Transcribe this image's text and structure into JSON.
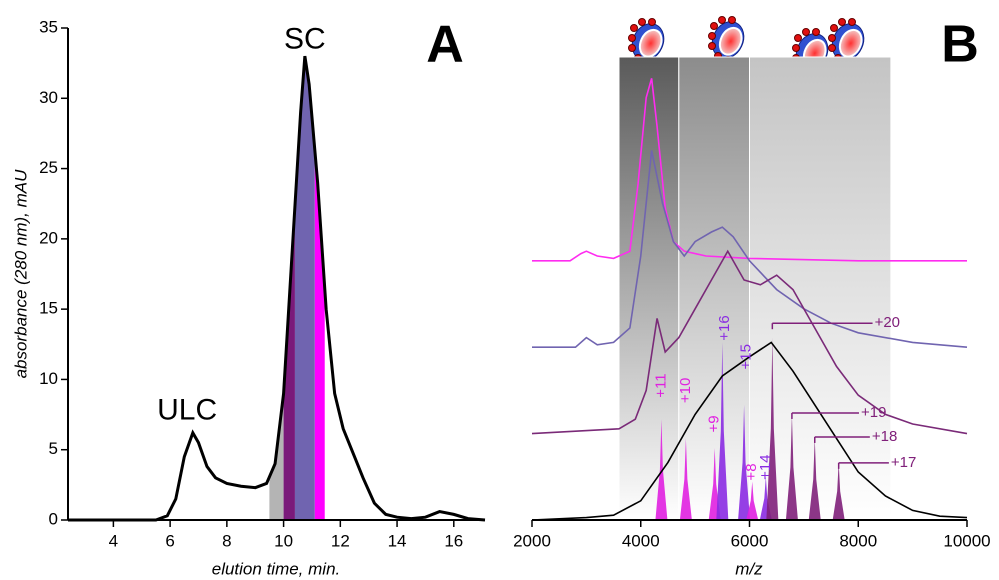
{
  "chart_data": [
    {
      "type": "line",
      "label": "A",
      "xlabel": "elution time, min.",
      "ylabel": "absorbance (280 nm), mAU",
      "xlim": [
        2.4,
        17.1
      ],
      "ylim": [
        0,
        35
      ],
      "xticks": [
        4,
        6,
        8,
        10,
        12,
        14,
        16
      ],
      "yticks": [
        0,
        5,
        10,
        15,
        20,
        25,
        30,
        35
      ],
      "annotations": [
        {
          "text": "SC",
          "x": 10.75,
          "y": 34.1
        },
        {
          "text": "ULC",
          "x": 6.6,
          "y": 7.7
        }
      ],
      "bands": [
        {
          "x": [
            9.5,
            10.0
          ],
          "color": "#b4b4b4"
        },
        {
          "x": [
            10.0,
            10.4
          ],
          "color": "#7a1a7a"
        },
        {
          "x": [
            10.4,
            11.1
          ],
          "color": "#7064b0"
        },
        {
          "x": [
            11.1,
            11.45
          ],
          "color": "#ff00ff"
        }
      ],
      "series": [
        {
          "color": "#000000",
          "x": [
            2.4,
            5.5,
            5.9,
            6.2,
            6.5,
            6.8,
            7.0,
            7.3,
            7.6,
            8.0,
            8.5,
            9.0,
            9.4,
            9.7,
            10.0,
            10.3,
            10.6,
            10.75,
            10.9,
            11.2,
            11.5,
            11.8,
            12.1,
            12.5,
            12.8,
            13.2,
            13.6,
            14.0,
            14.5,
            15.0,
            15.5,
            16.0,
            16.5,
            17.1
          ],
          "values": [
            0,
            0,
            0.3,
            1.5,
            4.5,
            6.2,
            5.5,
            3.8,
            3.0,
            2.6,
            2.4,
            2.3,
            2.6,
            4,
            9,
            19,
            29,
            33,
            31,
            24,
            15,
            9,
            6.5,
            4.5,
            3.0,
            1.2,
            0.4,
            0.2,
            0.1,
            0.2,
            0.6,
            0.4,
            0.1,
            0
          ]
        }
      ]
    },
    {
      "type": "line",
      "label": "B",
      "xlabel": "m/z",
      "xlim": [
        2000,
        10000
      ],
      "ylim": [
        0,
        100
      ],
      "xticks": [
        2000,
        4000,
        6000,
        8000,
        10000
      ],
      "bands": [
        {
          "x": [
            3600,
            4700
          ],
          "color": "#5a5a5a"
        },
        {
          "x": [
            4700,
            6000
          ],
          "color": "#8c8c8c"
        },
        {
          "x": [
            6000,
            8600
          ],
          "color": "#c4c4c4"
        }
      ],
      "series": [
        {
          "color": "#ff2cf0",
          "x": [
            2000,
            2700,
            2900,
            3000,
            3200,
            3500,
            3800,
            3950,
            4100,
            4200,
            4300,
            4450,
            4600,
            4800,
            5200,
            6000,
            8000,
            10000
          ],
          "values": [
            54,
            54,
            55.5,
            56,
            55,
            54.5,
            56,
            70,
            88,
            92,
            82,
            65,
            58,
            56,
            55,
            54.5,
            54,
            54
          ]
        },
        {
          "color": "#7064b0",
          "x": [
            2000,
            2800,
            3000,
            3200,
            3500,
            3800,
            4000,
            4200,
            4400,
            4600,
            4800,
            5000,
            5300,
            5500,
            5700,
            6000,
            6500,
            7000,
            7500,
            8000,
            9000,
            10000
          ],
          "values": [
            36,
            36,
            38,
            36.5,
            37,
            40,
            55,
            77,
            66,
            58,
            55,
            58,
            60,
            61,
            59,
            54,
            48,
            44,
            41,
            39,
            37,
            36
          ]
        },
        {
          "color": "#7a2a78",
          "x": [
            2000,
            3600,
            3900,
            4100,
            4300,
            4450,
            4700,
            5000,
            5300,
            5600,
            5900,
            6200,
            6500,
            6800,
            7200,
            7600,
            8000,
            8500,
            9000,
            10000
          ],
          "values": [
            18,
            19,
            21,
            27,
            42,
            35,
            38,
            44,
            50,
            56,
            50,
            49,
            51,
            48,
            40,
            32,
            26,
            22,
            20,
            18
          ]
        },
        {
          "color": "#000000",
          "x": [
            2000,
            3000,
            3500,
            4000,
            4500,
            5000,
            5500,
            6000,
            6400,
            6800,
            7200,
            7600,
            8000,
            8500,
            9000,
            9500,
            10000
          ],
          "values": [
            0,
            0.5,
            1,
            4,
            12,
            22,
            30,
            34,
            37,
            31,
            24,
            17,
            10,
            5,
            2,
            0.8,
            0.5
          ]
        }
      ],
      "peaks": {
        "x": [
          4380,
          4830,
          5360,
          5500,
          5900,
          6050,
          6300,
          6420,
          6780,
          7200,
          7640
        ],
        "values": [
          21,
          17,
          15,
          37,
          24,
          8,
          9,
          38,
          22,
          17,
          12
        ],
        "colors": [
          "#e020e0",
          "#e020e0",
          "#e020e0",
          "#8a2be2",
          "#8a2be2",
          "#e020e0",
          "#8a2be2",
          "#80207a",
          "#80207a",
          "#80207a",
          "#80207a"
        ]
      },
      "annotations": [
        {
          "text": "+11",
          "x": 4380,
          "y": 28,
          "color": "#e020e0",
          "rotate": true
        },
        {
          "text": "+10",
          "x": 4830,
          "y": 27,
          "color": "#e020e0",
          "rotate": true
        },
        {
          "text": "+9",
          "x": 5360,
          "y": 20,
          "color": "#e020e0",
          "rotate": true
        },
        {
          "text": "+16",
          "x": 5550,
          "y": 40,
          "color": "#8a2be2",
          "rotate": true
        },
        {
          "text": "+15",
          "x": 5950,
          "y": 34,
          "color": "#8a2be2",
          "rotate": true
        },
        {
          "text": "+8",
          "x": 6050,
          "y": 10,
          "color": "#e020e0",
          "rotate": true
        },
        {
          "text": "+14",
          "x": 6300,
          "y": 11,
          "color": "#8a2be2",
          "rotate": true
        },
        {
          "text": "+20",
          "x": 6420,
          "text_x": 8300,
          "y": 41,
          "color": "#80207a"
        },
        {
          "text": "+19",
          "x": 6780,
          "text_x": 8050,
          "y": 22.3,
          "color": "#80207a"
        },
        {
          "text": "+18",
          "x": 7200,
          "text_x": 8250,
          "y": 17.3,
          "color": "#80207a"
        },
        {
          "text": "+17",
          "x": 7640,
          "text_x": 8600,
          "y": 11.9,
          "color": "#80207a"
        }
      ]
    }
  ]
}
